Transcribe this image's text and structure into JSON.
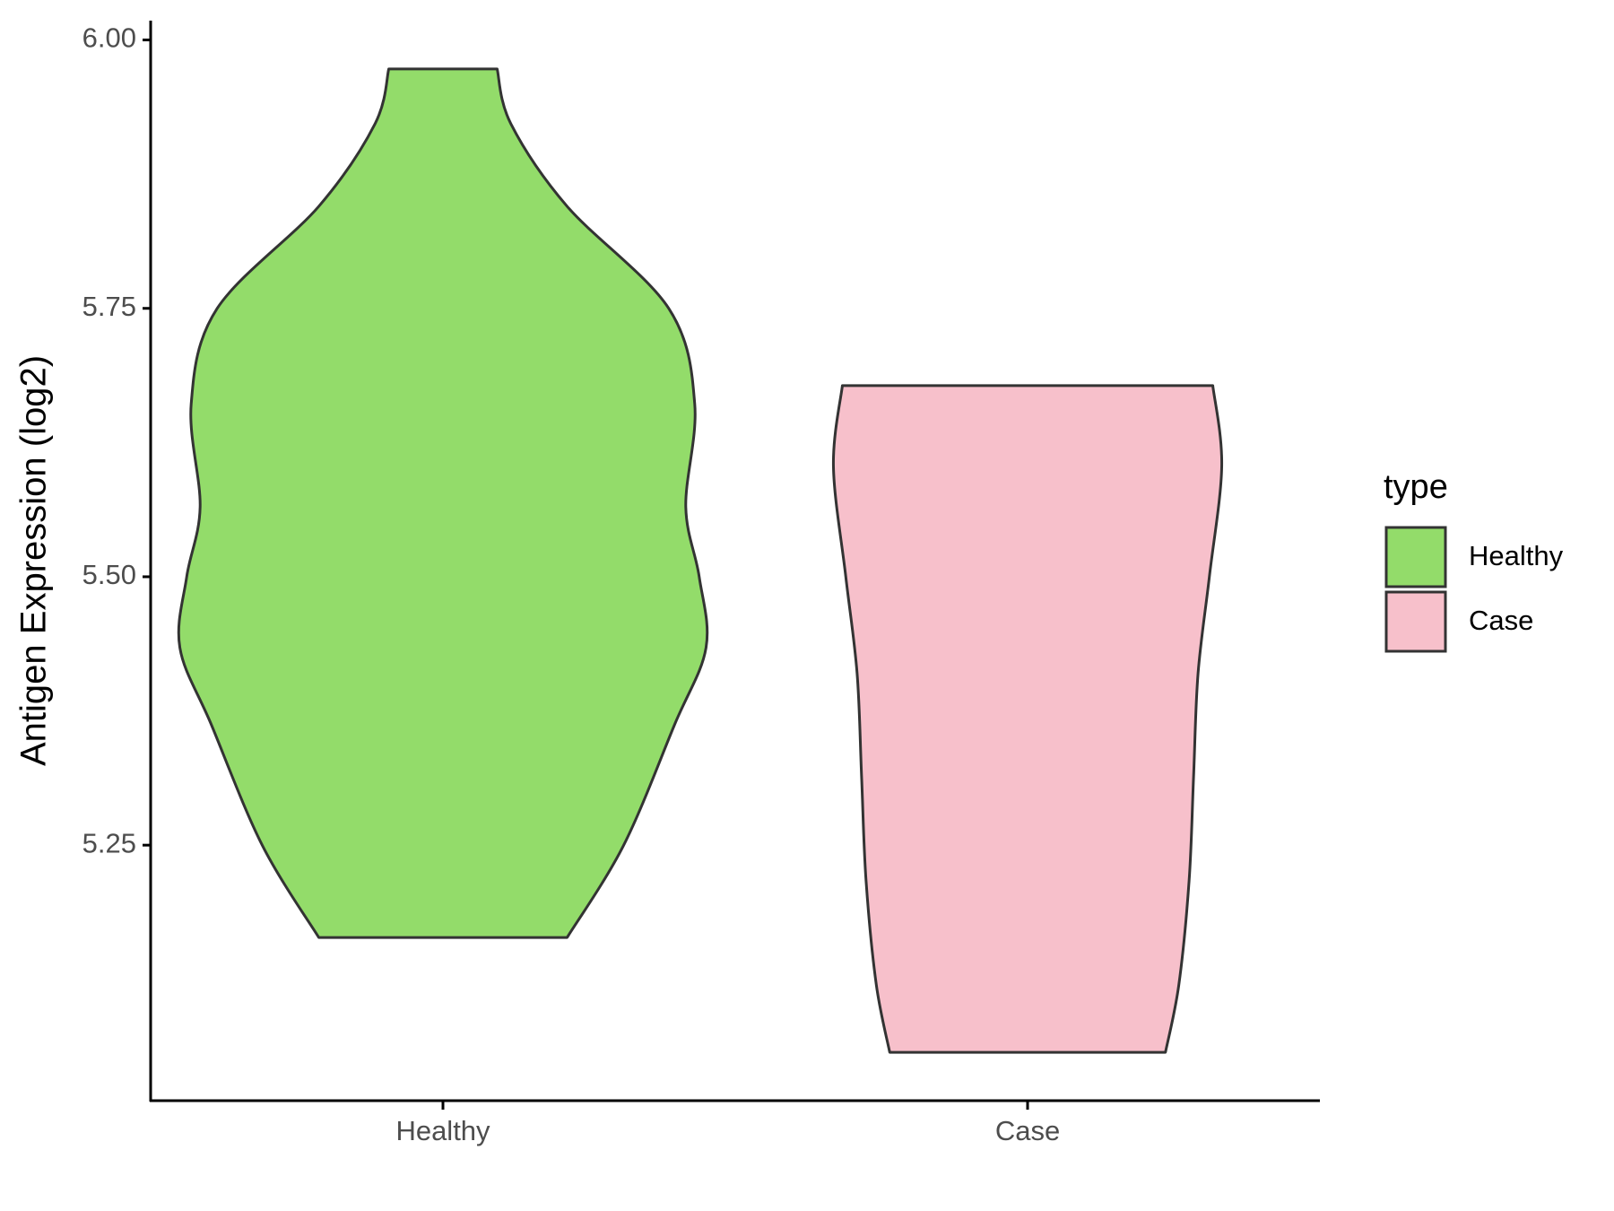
{
  "chart_data": {
    "type": "violin",
    "y_label": "Antigen Expression (log2)",
    "categories": [
      "Healthy",
      "Case"
    ],
    "legend_title": "type",
    "legend": "right",
    "ylim": [
      5.012,
      6.018
    ],
    "yticks": [
      5.25,
      {
        "value": 5.5,
        "label": "5.50"
      },
      5.75,
      {
        "value": 6,
        "label": "6.00"
      }
    ],
    "series": [
      {
        "name": "Healthy",
        "color": "#93dc6a",
        "y": [
          5.973,
          5.922,
          5.845,
          5.75,
          5.661,
          5.565,
          5.5,
          5.434,
          5.362,
          5.25,
          5.164
        ],
        "density": [
          0.206,
          0.258,
          0.472,
          0.858,
          0.957,
          0.923,
          0.974,
          1.0,
          0.88,
          0.687,
          0.472
        ]
      },
      {
        "name": "Case",
        "color": "#f7c0cb",
        "y": [
          5.678,
          5.603,
          5.5,
          5.41,
          5.314,
          5.217,
          5.12,
          5.057
        ],
        "density": [
          0.704,
          0.738,
          0.691,
          0.648,
          0.631,
          0.614,
          0.575,
          0.524
        ]
      }
    ]
  }
}
